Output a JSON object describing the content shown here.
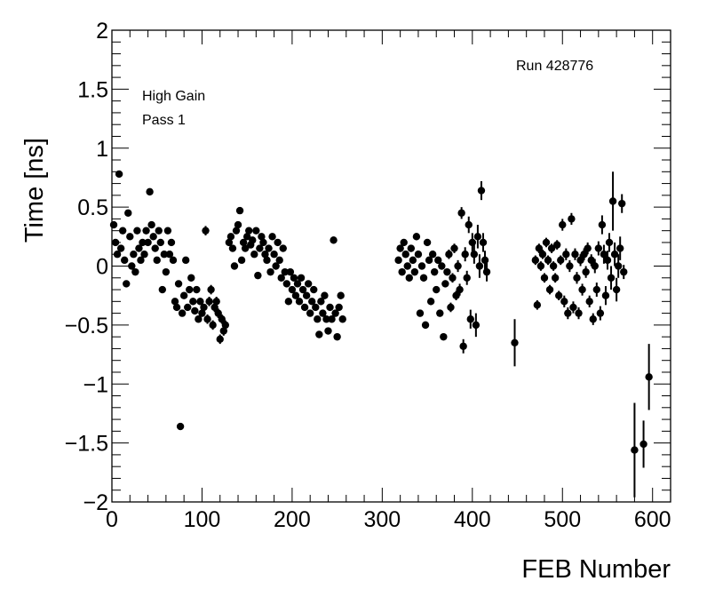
{
  "chart_data": {
    "type": "scatter",
    "xlabel": "FEB Number",
    "ylabel": "Time [ns]",
    "xlim": [
      0,
      620
    ],
    "ylim": [
      -2,
      2
    ],
    "x_ticks": [
      "0",
      "100",
      "200",
      "300",
      "400",
      "500",
      "600"
    ],
    "y_ticks": [
      "2",
      "1.5",
      "1",
      "0.5",
      "0",
      "−0.5",
      "−1",
      "−1.5",
      "−2"
    ],
    "annotations": [
      "High Gain",
      "Pass 1",
      "Run 428776"
    ],
    "grid": false,
    "series": [
      {
        "marker": "filled-circle",
        "error_bars": "vertical",
        "points": [
          [
            2,
            0.35,
            0.02
          ],
          [
            4,
            0.2,
            0.02
          ],
          [
            6,
            0.1,
            0.02
          ],
          [
            8,
            0.78,
            0.02
          ],
          [
            10,
            0.15,
            0.02
          ],
          [
            12,
            0.3,
            0.02
          ],
          [
            14,
            0.05,
            0.02
          ],
          [
            16,
            -0.15,
            0.02
          ],
          [
            18,
            0.45,
            0.02
          ],
          [
            20,
            0.25,
            0.02
          ],
          [
            22,
            0.0,
            0.02
          ],
          [
            24,
            0.1,
            0.02
          ],
          [
            26,
            -0.05,
            0.02
          ],
          [
            28,
            0.3,
            0.02
          ],
          [
            30,
            0.15,
            0.02
          ],
          [
            32,
            0.05,
            0.02
          ],
          [
            34,
            0.2,
            0.02
          ],
          [
            36,
            0.1,
            0.02
          ],
          [
            38,
            0.3,
            0.02
          ],
          [
            40,
            0.2,
            0.02
          ],
          [
            42,
            0.63,
            0.02
          ],
          [
            44,
            0.35,
            0.02
          ],
          [
            46,
            0.25,
            0.02
          ],
          [
            48,
            0.15,
            0.02
          ],
          [
            50,
            0.05,
            0.02
          ],
          [
            52,
            0.3,
            0.02
          ],
          [
            54,
            0.2,
            0.02
          ],
          [
            56,
            -0.2,
            0.02
          ],
          [
            58,
            0.1,
            0.02
          ],
          [
            60,
            -0.05,
            0.02
          ],
          [
            62,
            0.3,
            0.02
          ],
          [
            64,
            0.1,
            0.02
          ],
          [
            66,
            0.2,
            0.02
          ],
          [
            68,
            0.05,
            0.02
          ],
          [
            70,
            -0.3,
            0.02
          ],
          [
            72,
            -0.35,
            0.02
          ],
          [
            74,
            -0.15,
            0.02
          ],
          [
            76,
            -1.36,
            0.02
          ],
          [
            78,
            -0.4,
            0.02
          ],
          [
            80,
            -0.25,
            0.02
          ],
          [
            82,
            0.05,
            0.02
          ],
          [
            84,
            -0.35,
            0.03
          ],
          [
            86,
            -0.2,
            0.03
          ],
          [
            88,
            -0.1,
            0.03
          ],
          [
            90,
            -0.3,
            0.03
          ],
          [
            92,
            -0.38,
            0.03
          ],
          [
            94,
            -0.2,
            0.03
          ],
          [
            96,
            -0.45,
            0.03
          ],
          [
            98,
            -0.3,
            0.03
          ],
          [
            100,
            -0.4,
            0.03
          ],
          [
            102,
            -0.35,
            0.03
          ],
          [
            104,
            0.3,
            0.04
          ],
          [
            106,
            -0.45,
            0.04
          ],
          [
            108,
            -0.3,
            0.04
          ],
          [
            110,
            -0.2,
            0.04
          ],
          [
            112,
            -0.5,
            0.04
          ],
          [
            114,
            -0.35,
            0.04
          ],
          [
            116,
            -0.3,
            0.04
          ],
          [
            118,
            -0.4,
            0.04
          ],
          [
            120,
            -0.62,
            0.04
          ],
          [
            122,
            -0.45,
            0.04
          ],
          [
            124,
            -0.55,
            0.04
          ],
          [
            126,
            -0.5,
            0.04
          ],
          [
            130,
            0.2,
            0.02
          ],
          [
            132,
            0.25,
            0.02
          ],
          [
            134,
            0.15,
            0.02
          ],
          [
            136,
            0.0,
            0.02
          ],
          [
            138,
            0.3,
            0.02
          ],
          [
            140,
            0.35,
            0.02
          ],
          [
            142,
            0.47,
            0.02
          ],
          [
            144,
            0.05,
            0.02
          ],
          [
            146,
            0.2,
            0.02
          ],
          [
            148,
            0.15,
            0.02
          ],
          [
            150,
            0.25,
            0.02
          ],
          [
            152,
            0.3,
            0.02
          ],
          [
            154,
            0.18,
            0.02
          ],
          [
            156,
            0.22,
            0.02
          ],
          [
            158,
            0.1,
            0.02
          ],
          [
            160,
            0.3,
            0.02
          ],
          [
            162,
            -0.08,
            0.02
          ],
          [
            164,
            0.15,
            0.02
          ],
          [
            166,
            0.25,
            0.02
          ],
          [
            168,
            0.2,
            0.02
          ],
          [
            170,
            0.1,
            0.02
          ],
          [
            172,
            0.05,
            0.02
          ],
          [
            174,
            0.15,
            0.02
          ],
          [
            176,
            -0.05,
            0.02
          ],
          [
            178,
            0.25,
            0.02
          ],
          [
            180,
            0.1,
            0.02
          ],
          [
            182,
            0.0,
            0.02
          ],
          [
            184,
            0.2,
            0.02
          ],
          [
            186,
            0.05,
            0.02
          ],
          [
            188,
            -0.1,
            0.02
          ],
          [
            190,
            0.15,
            0.02
          ],
          [
            192,
            -0.05,
            0.02
          ],
          [
            194,
            -0.15,
            0.02
          ],
          [
            196,
            -0.3,
            0.02
          ],
          [
            198,
            -0.05,
            0.02
          ],
          [
            200,
            -0.2,
            0.02
          ],
          [
            202,
            -0.1,
            0.02
          ],
          [
            204,
            -0.25,
            0.02
          ],
          [
            206,
            -0.15,
            0.02
          ],
          [
            208,
            -0.3,
            0.02
          ],
          [
            210,
            -0.1,
            0.02
          ],
          [
            212,
            -0.2,
            0.02
          ],
          [
            214,
            -0.35,
            0.02
          ],
          [
            216,
            -0.25,
            0.02
          ],
          [
            218,
            -0.15,
            0.02
          ],
          [
            220,
            -0.4,
            0.02
          ],
          [
            222,
            -0.3,
            0.02
          ],
          [
            224,
            -0.2,
            0.02
          ],
          [
            226,
            -0.35,
            0.02
          ],
          [
            228,
            -0.45,
            0.02
          ],
          [
            230,
            -0.58,
            0.03
          ],
          [
            232,
            -0.3,
            0.03
          ],
          [
            234,
            -0.4,
            0.03
          ],
          [
            236,
            -0.25,
            0.03
          ],
          [
            238,
            -0.45,
            0.03
          ],
          [
            240,
            -0.55,
            0.03
          ],
          [
            242,
            -0.35,
            0.03
          ],
          [
            244,
            -0.45,
            0.03
          ],
          [
            246,
            0.22,
            0.03
          ],
          [
            248,
            -0.4,
            0.03
          ],
          [
            250,
            -0.6,
            0.03
          ],
          [
            252,
            -0.35,
            0.03
          ],
          [
            254,
            -0.25,
            0.03
          ],
          [
            256,
            -0.45,
            0.03
          ],
          [
            318,
            0.05,
            0.03
          ],
          [
            320,
            0.15,
            0.03
          ],
          [
            322,
            -0.05,
            0.03
          ],
          [
            324,
            0.2,
            0.03
          ],
          [
            326,
            0.1,
            0.03
          ],
          [
            328,
            0.0,
            0.03
          ],
          [
            330,
            -0.1,
            0.03
          ],
          [
            332,
            0.15,
            0.03
          ],
          [
            334,
            0.05,
            0.03
          ],
          [
            336,
            -0.05,
            0.03
          ],
          [
            338,
            0.25,
            0.03
          ],
          [
            340,
            0.1,
            0.03
          ],
          [
            342,
            -0.4,
            0.03
          ],
          [
            344,
            0.0,
            0.03
          ],
          [
            346,
            -0.1,
            0.03
          ],
          [
            348,
            -0.5,
            0.03
          ],
          [
            350,
            0.2,
            0.03
          ],
          [
            352,
            0.05,
            0.03
          ],
          [
            354,
            -0.3,
            0.03
          ],
          [
            356,
            0.1,
            0.03
          ],
          [
            358,
            -0.05,
            0.03
          ],
          [
            360,
            -0.2,
            0.03
          ],
          [
            362,
            0.05,
            0.03
          ],
          [
            364,
            -0.4,
            0.03
          ],
          [
            366,
            0.0,
            0.03
          ],
          [
            368,
            -0.6,
            0.03
          ],
          [
            370,
            -0.15,
            0.03
          ],
          [
            372,
            -0.05,
            0.03
          ],
          [
            374,
            0.1,
            0.04
          ],
          [
            376,
            -0.35,
            0.04
          ],
          [
            378,
            -0.1,
            0.04
          ],
          [
            380,
            0.15,
            0.04
          ],
          [
            382,
            -0.25,
            0.04
          ],
          [
            384,
            0.0,
            0.05
          ],
          [
            386,
            -0.2,
            0.05
          ],
          [
            388,
            0.45,
            0.05
          ],
          [
            390,
            -0.68,
            0.06
          ],
          [
            392,
            0.1,
            0.06
          ],
          [
            394,
            -0.1,
            0.06
          ],
          [
            396,
            0.35,
            0.07
          ],
          [
            398,
            -0.45,
            0.08
          ],
          [
            400,
            0.2,
            0.08
          ],
          [
            402,
            0.1,
            0.08
          ],
          [
            404,
            -0.5,
            0.1
          ],
          [
            406,
            0.25,
            0.1
          ],
          [
            408,
            0.0,
            0.1
          ],
          [
            410,
            0.64,
            0.08
          ],
          [
            412,
            0.2,
            0.08
          ],
          [
            414,
            0.05,
            0.08
          ],
          [
            416,
            -0.05,
            0.08
          ],
          [
            447,
            -0.65,
            0.2
          ],
          [
            470,
            0.05,
            0.04
          ],
          [
            472,
            -0.33,
            0.04
          ],
          [
            474,
            0.15,
            0.04
          ],
          [
            476,
            0.0,
            0.04
          ],
          [
            478,
            0.1,
            0.04
          ],
          [
            480,
            -0.1,
            0.04
          ],
          [
            482,
            0.2,
            0.04
          ],
          [
            484,
            0.05,
            0.04
          ],
          [
            486,
            -0.2,
            0.04
          ],
          [
            488,
            0.15,
            0.04
          ],
          [
            490,
            0.0,
            0.04
          ],
          [
            492,
            -0.1,
            0.04
          ],
          [
            494,
            0.18,
            0.04
          ],
          [
            496,
            -0.25,
            0.04
          ],
          [
            498,
            0.05,
            0.04
          ],
          [
            500,
            0.35,
            0.05
          ],
          [
            502,
            -0.3,
            0.05
          ],
          [
            504,
            0.1,
            0.05
          ],
          [
            506,
            -0.4,
            0.05
          ],
          [
            508,
            0.0,
            0.05
          ],
          [
            510,
            0.4,
            0.05
          ],
          [
            512,
            -0.35,
            0.05
          ],
          [
            514,
            0.1,
            0.05
          ],
          [
            516,
            -0.1,
            0.05
          ],
          [
            518,
            -0.4,
            0.05
          ],
          [
            520,
            0.05,
            0.05
          ],
          [
            522,
            -0.2,
            0.05
          ],
          [
            524,
            0.1,
            0.05
          ],
          [
            526,
            -0.05,
            0.05
          ],
          [
            528,
            0.15,
            0.05
          ],
          [
            530,
            -0.3,
            0.05
          ],
          [
            532,
            0.05,
            0.05
          ],
          [
            534,
            -0.45,
            0.05
          ],
          [
            536,
            0.0,
            0.06
          ],
          [
            538,
            -0.2,
            0.06
          ],
          [
            540,
            0.15,
            0.06
          ],
          [
            542,
            -0.4,
            0.06
          ],
          [
            544,
            0.35,
            0.08
          ],
          [
            546,
            0.1,
            0.08
          ],
          [
            548,
            -0.25,
            0.08
          ],
          [
            550,
            0.05,
            0.08
          ],
          [
            552,
            0.2,
            0.08
          ],
          [
            554,
            -0.1,
            0.1
          ],
          [
            556,
            0.55,
            0.25
          ],
          [
            558,
            0.1,
            0.1
          ],
          [
            560,
            -0.2,
            0.1
          ],
          [
            562,
            0.0,
            0.1
          ],
          [
            564,
            0.15,
            0.1
          ],
          [
            566,
            0.53,
            0.08
          ],
          [
            568,
            -0.05,
            0.06
          ],
          [
            580,
            -1.56,
            0.4
          ],
          [
            590,
            -1.51,
            0.2
          ],
          [
            596,
            -0.94,
            0.28
          ]
        ]
      }
    ]
  }
}
